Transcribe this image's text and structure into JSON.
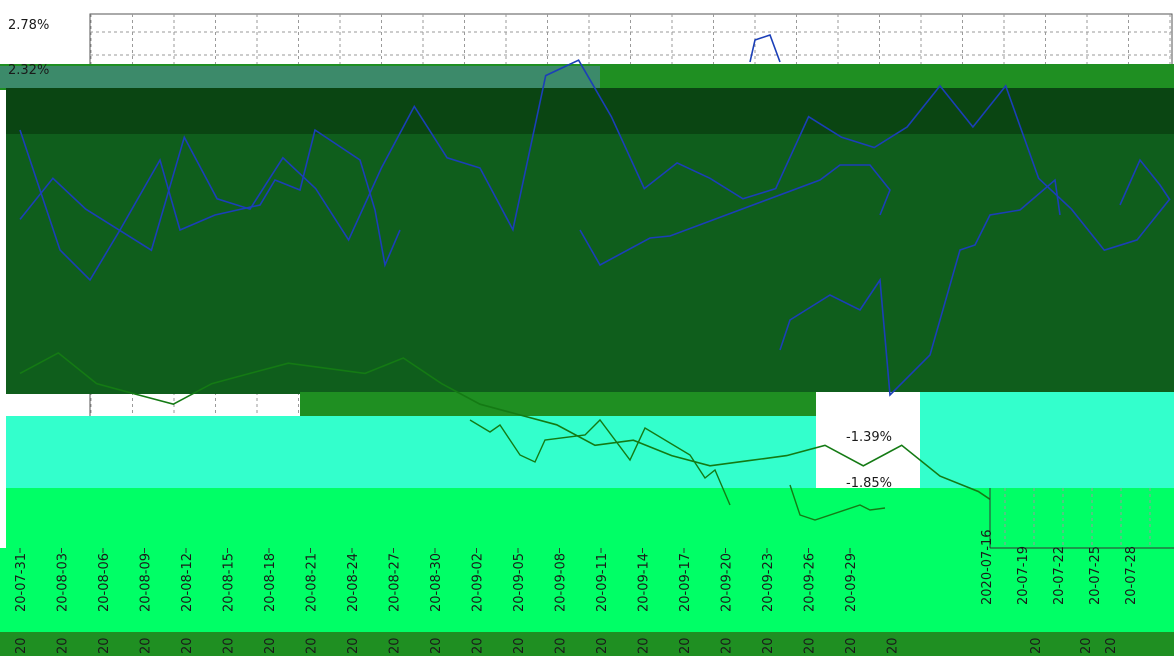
{
  "colors": {
    "background": "#ffffff",
    "grid": "#9a9a9a",
    "band_dark": "#0f5e1c",
    "band_darker": "#0a4512",
    "band_mint": "#33ffcc",
    "band_lime": "#00ff66",
    "band_green": "#1f8f22",
    "line_blue": "#1b3fb8",
    "line_green": "#147a14"
  },
  "chart_data": [
    {
      "type": "line",
      "name": "main",
      "y_ticks": [
        "2.78%",
        "2.32%",
        "-1.39%",
        "-1.85%"
      ],
      "x_ticks": [
        "20-07-31",
        "20-08-03",
        "20-08-06",
        "20-08-09",
        "20-08-12",
        "20-08-15",
        "20-08-18",
        "20-08-21",
        "20-08-24",
        "20-08-27",
        "20-08-30",
        "20-09-02",
        "20-09-05",
        "20-09-08",
        "20-09-11",
        "20-09-14",
        "20-09-17",
        "20-09-20",
        "20-09-23",
        "20-09-26",
        "20-09-29"
      ],
      "x_tick_fragment": "20",
      "grid": true,
      "series": [
        {
          "color": "#1b3fb8",
          "values": [
            0.9,
            1.3,
            1.0,
            0.8,
            0.6,
            1.7,
            1.1,
            1.0,
            1.5,
            1.2,
            0.7,
            1.4,
            2.0,
            1.5,
            1.4,
            0.8,
            2.3,
            2.45,
            1.9,
            1.2,
            1.45,
            1.3,
            1.1,
            1.2,
            1.9,
            1.7,
            1.6,
            1.8,
            2.2,
            1.8,
            2.2,
            1.3,
            1.0,
            0.6,
            0.7,
            1.1
          ]
        },
        {
          "color": "#147a14",
          "values": [
            -0.6,
            -0.4,
            -0.7,
            -0.8,
            -0.9,
            -0.7,
            -0.6,
            -0.5,
            -0.55,
            -0.6,
            -0.45,
            -0.7,
            -0.9,
            -1.0,
            -1.1,
            -1.3,
            -1.25,
            -1.4,
            -1.5,
            -1.45,
            -1.4,
            -1.3,
            -1.5,
            -1.3,
            -1.6,
            -1.75,
            -2.0,
            -2.05,
            -1.95,
            -2.1,
            -2.15
          ]
        }
      ]
    },
    {
      "type": "line",
      "name": "inset",
      "x_ticks": [
        "2020-07-16",
        "20-07-19",
        "20-07-22",
        "20-07-25",
        "20-07-28"
      ],
      "x_tick_fragment": "20",
      "grid": true,
      "series": []
    }
  ]
}
